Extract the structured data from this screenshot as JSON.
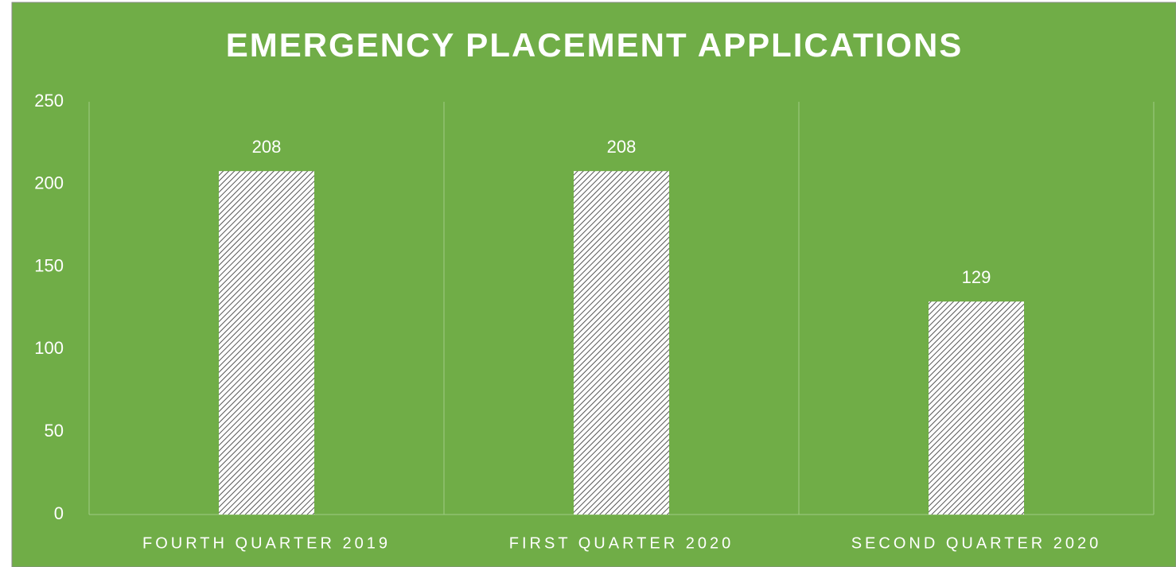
{
  "chart_data": {
    "type": "bar",
    "title": "EMERGENCY PLACEMENT APPLICATIONS",
    "categories": [
      "FOURTH QUARTER 2019",
      "FIRST QUARTER 2020",
      "SECOND QUARTER 2020"
    ],
    "values": [
      208,
      208,
      129
    ],
    "ylim": [
      0,
      250
    ],
    "yticks": [
      0,
      50,
      100,
      150,
      200,
      250
    ],
    "grid": false
  }
}
